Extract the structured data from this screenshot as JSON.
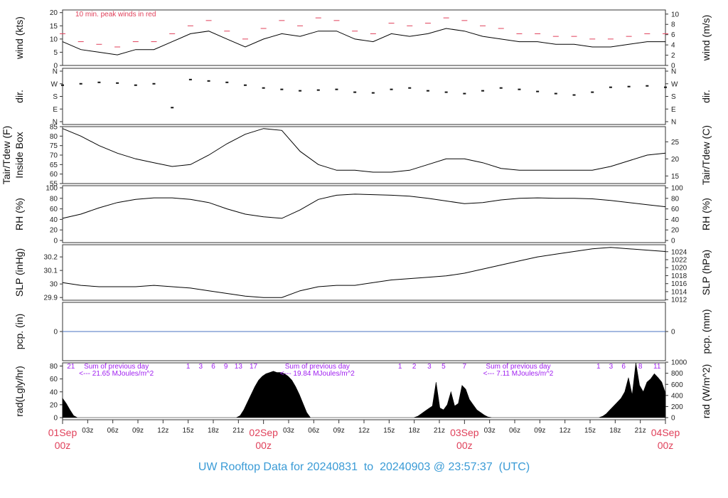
{
  "footer": {
    "prefix": "UW Rooftop Data for",
    "start": "20240831",
    "to": "to",
    "end": "20240903",
    "at": "@",
    "time": "23:57:37",
    "zone": "(UTC)"
  },
  "chart_data": [
    {
      "type": "line",
      "panel": "wind",
      "ylabel": "wind (kts)",
      "ylabel_right": "wind (m/s)",
      "ylim": [
        0,
        21
      ],
      "yticks_left": [
        0,
        5,
        10,
        15,
        20
      ],
      "yticks_right": [
        0,
        2,
        4,
        6,
        8,
        10
      ],
      "annotation": "10 min. peak winds in red",
      "series": [
        {
          "values": [
            9,
            6,
            5,
            4,
            6,
            6,
            9,
            12,
            13,
            10,
            7,
            10,
            12,
            11,
            13,
            13,
            10,
            9,
            12,
            11,
            12,
            14,
            13,
            11,
            10,
            9,
            9,
            8,
            8,
            7,
            7,
            8,
            9,
            9
          ]
        },
        {
          "values": [
            12,
            9,
            8,
            7,
            9,
            9,
            12,
            15,
            17,
            13,
            10,
            14,
            17,
            15,
            18,
            17,
            13,
            12,
            16,
            15,
            16,
            18,
            17,
            15,
            14,
            12,
            12,
            11,
            11,
            10,
            10,
            11,
            12,
            12
          ]
        }
      ]
    },
    {
      "type": "scatter",
      "panel": "dir",
      "ylabel": "dir.",
      "ylabel_right": "dir.",
      "ytick_labels": [
        "N",
        "W",
        "S",
        "E",
        "N"
      ],
      "values_deg": [
        260,
        270,
        280,
        275,
        260,
        270,
        100,
        300,
        290,
        280,
        260,
        240,
        230,
        220,
        225,
        230,
        210,
        205,
        230,
        240,
        220,
        210,
        200,
        220,
        240,
        230,
        215,
        200,
        190,
        210,
        245,
        250,
        255,
        245
      ]
    },
    {
      "type": "line",
      "panel": "temp",
      "ylabel": "Tair/Tdew (F)",
      "ylabel2": "Inside Box",
      "ylabel_right": "Tair/Tdew (C)",
      "ylim": [
        55,
        85
      ],
      "yticks_left": [
        55,
        60,
        65,
        70,
        75,
        80,
        85
      ],
      "yticks_right": [
        15,
        20,
        25
      ],
      "series": [
        {
          "values": [
            84,
            80,
            75,
            71,
            68,
            66,
            64,
            65,
            70,
            76,
            81,
            84,
            83,
            72,
            65,
            62,
            62,
            61,
            61,
            62,
            65,
            68,
            68,
            66,
            63,
            62,
            62,
            62,
            62,
            62,
            64,
            67,
            70,
            71
          ]
        }
      ]
    },
    {
      "type": "line",
      "panel": "rh",
      "ylabel": "RH (%)",
      "ylabel_right": "RH (%)",
      "ylim": [
        0,
        100
      ],
      "yticks_left": [
        0,
        20,
        40,
        60,
        80,
        100
      ],
      "yticks_right": [
        0,
        20,
        40,
        60,
        80,
        100
      ],
      "series": [
        {
          "values": [
            42,
            50,
            62,
            72,
            78,
            81,
            81,
            78,
            72,
            60,
            50,
            45,
            42,
            58,
            78,
            86,
            88,
            87,
            86,
            84,
            80,
            75,
            70,
            72,
            77,
            80,
            81,
            80,
            80,
            79,
            76,
            72,
            68,
            64
          ]
        }
      ]
    },
    {
      "type": "line",
      "panel": "slp",
      "ylabel": "SLP (inHg)",
      "ylabel_right": "SLP (hPa)",
      "ylim": [
        29.88,
        30.29
      ],
      "yticks_left": [
        29.9,
        30.0,
        30.1,
        30.2
      ],
      "yticks_right": [
        1012,
        1014,
        1016,
        1018,
        1020,
        1022,
        1024
      ],
      "series": [
        {
          "values": [
            30.01,
            29.99,
            29.98,
            29.98,
            29.98,
            29.99,
            29.98,
            29.97,
            29.95,
            29.93,
            29.91,
            29.9,
            29.9,
            29.95,
            29.98,
            29.99,
            29.99,
            30.01,
            30.03,
            30.04,
            30.05,
            30.06,
            30.08,
            30.11,
            30.14,
            30.17,
            30.2,
            30.22,
            30.24,
            30.26,
            30.27,
            30.26,
            30.25,
            30.24
          ]
        }
      ]
    },
    {
      "type": "line",
      "panel": "pcp",
      "ylabel": "pcp. (in)",
      "ylabel_right": "pcp. (mm)",
      "yticks_left": [
        0
      ],
      "yticks_right": [
        0
      ],
      "series": [
        {
          "values": [
            0,
            0
          ]
        }
      ]
    },
    {
      "type": "area",
      "panel": "rad",
      "ylabel": "rad(Lgly/hr)",
      "ylabel_right": "rad (W/m^2)",
      "ylim": [
        0,
        85
      ],
      "yticks_left": [
        0,
        20,
        40,
        60,
        80
      ],
      "yticks_right": [
        0,
        200,
        400,
        600,
        800,
        1000
      ],
      "series": [
        {
          "values": [
            30,
            22,
            12,
            3,
            0,
            0,
            0,
            0,
            0,
            0,
            0,
            0,
            0,
            0,
            0,
            0,
            0,
            0,
            0,
            0,
            0,
            0,
            0,
            0,
            0,
            0,
            0,
            0,
            0,
            0,
            0,
            0,
            0,
            0,
            0,
            0,
            0,
            0,
            0,
            0,
            0,
            0,
            0,
            0,
            0,
            0,
            0,
            0,
            3,
            12,
            24,
            36,
            48,
            58,
            64,
            68,
            70,
            72,
            70,
            70,
            68,
            64,
            58,
            48,
            36,
            22,
            8,
            0,
            0,
            0,
            0,
            0,
            0,
            0,
            0,
            0,
            0,
            0,
            0,
            0,
            0,
            0,
            0,
            0,
            0,
            0,
            0,
            0,
            0,
            0,
            0,
            0,
            0,
            0,
            0,
            0,
            2,
            6,
            10,
            14,
            18,
            55,
            15,
            12,
            20,
            40,
            18,
            22,
            50,
            44,
            28,
            20,
            12,
            8,
            4,
            1,
            0,
            0,
            0,
            0,
            0,
            0,
            0,
            0,
            0,
            0,
            0,
            0,
            0,
            0,
            0,
            0,
            0,
            0,
            0,
            0,
            0,
            0,
            0,
            0,
            0,
            0,
            0,
            0,
            0,
            0,
            2,
            6,
            12,
            18,
            24,
            30,
            40,
            62,
            35,
            85,
            50,
            40,
            55,
            60,
            68,
            62,
            55,
            38
          ]
        }
      ],
      "day_labels": [
        {
          "line1": "Sum of previous day",
          "line2": "<--- 21.65 MJoules/m^2"
        },
        {
          "line1": "Sum of previous day",
          "line2": "<--- 19.84 MJoules/m^2"
        },
        {
          "line1": "Sum of previous day",
          "line2": "<--- 7.11 MJoules/m^2"
        }
      ],
      "hour_markers": [
        {
          "x": 1,
          "label": "21"
        },
        {
          "x": 15,
          "label": "1"
        },
        {
          "x": 16.5,
          "label": "3"
        },
        {
          "x": 18,
          "label": "6"
        },
        {
          "x": 19.5,
          "label": "9"
        },
        {
          "x": 21,
          "label": "13"
        },
        {
          "x": 22.8,
          "label": "17"
        },
        {
          "x": 40.3,
          "label": "1"
        },
        {
          "x": 42,
          "label": "2"
        },
        {
          "x": 43.8,
          "label": "3"
        },
        {
          "x": 45.5,
          "label": "5"
        },
        {
          "x": 48,
          "label": "7"
        },
        {
          "x": 64,
          "label": "1"
        },
        {
          "x": 65.5,
          "label": "3"
        },
        {
          "x": 67,
          "label": "6"
        },
        {
          "x": 69,
          "label": "8"
        },
        {
          "x": 71,
          "label": "11"
        }
      ]
    }
  ],
  "x_axis": {
    "hour_labels": [
      "03z",
      "06z",
      "09z",
      "12z",
      "15z",
      "18z",
      "21z",
      "03z",
      "06z",
      "09z",
      "12z",
      "15z",
      "18z",
      "21z",
      "03z",
      "06z",
      "09z",
      "12z",
      "15z",
      "18z",
      "21z"
    ],
    "hour_positions": [
      3,
      6,
      9,
      12,
      15,
      18,
      21,
      27,
      30,
      33,
      36,
      39,
      42,
      45,
      51,
      54,
      57,
      60,
      63,
      66,
      69
    ],
    "date_labels": [
      {
        "date": "01Sep",
        "z": "00z",
        "x": 0
      },
      {
        "date": "02Sep",
        "z": "00z",
        "x": 24
      },
      {
        "date": "03Sep",
        "z": "00z",
        "x": 48
      },
      {
        "date": "04Sep",
        "z": "00z",
        "x": 72
      }
    ],
    "range_hours": [
      0,
      72
    ]
  }
}
